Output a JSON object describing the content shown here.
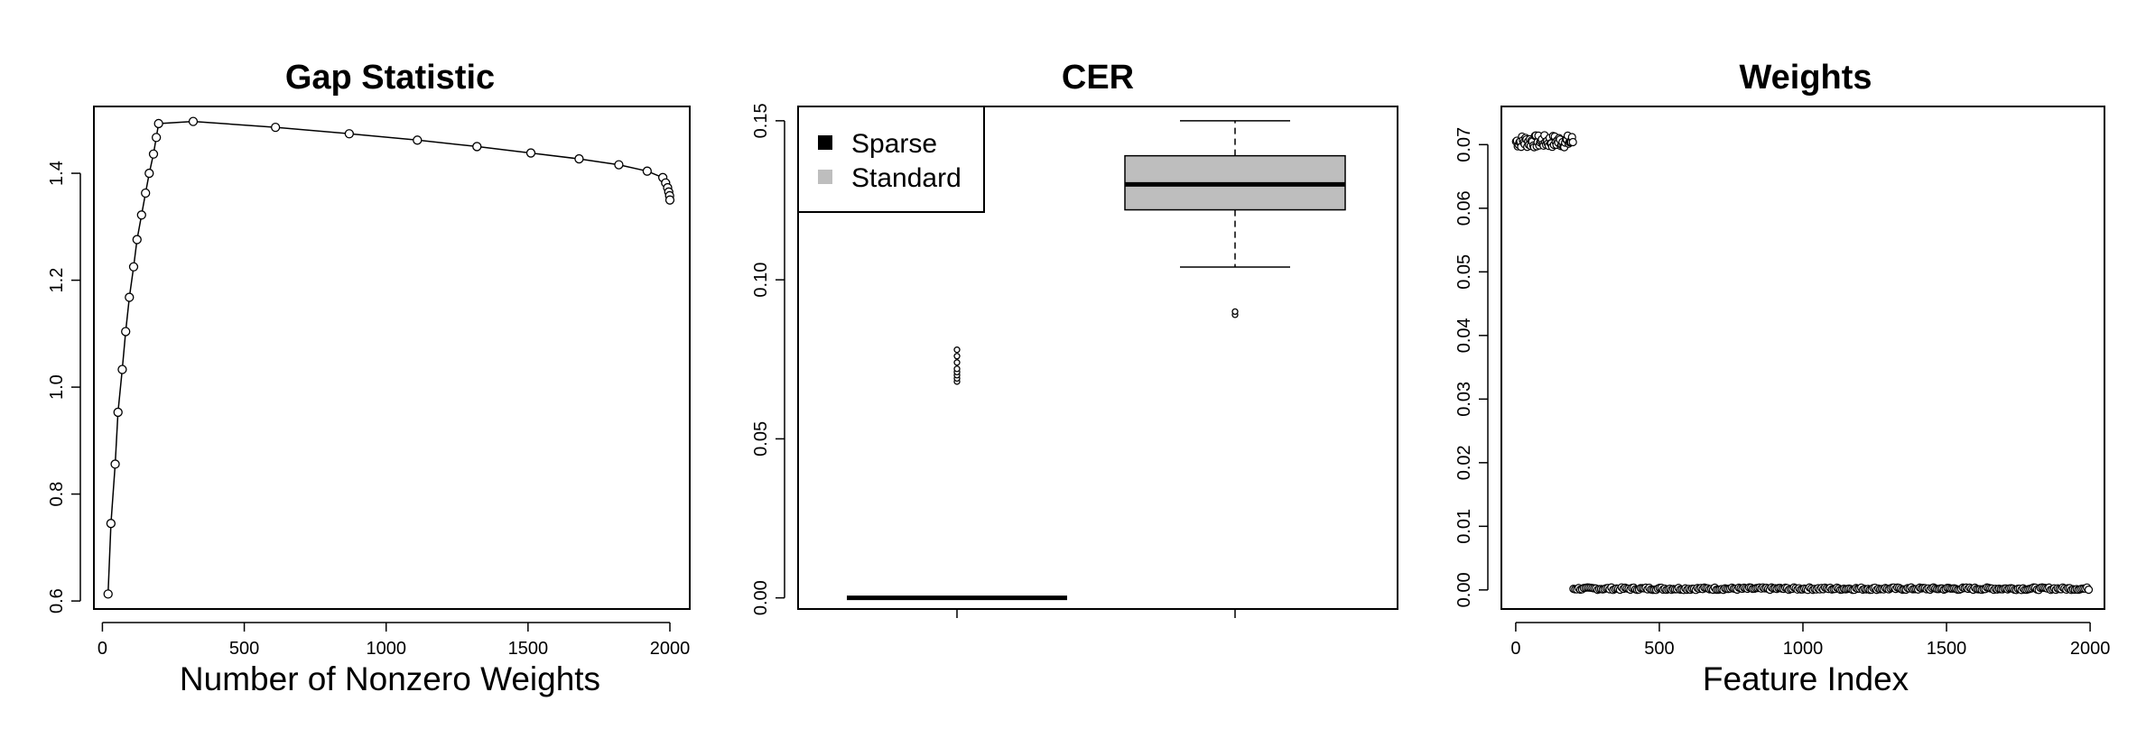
{
  "chart_data": [
    {
      "type": "line",
      "title": "Gap Statistic",
      "xlabel": "Number of  Nonzero Weights",
      "ylabel": "",
      "xlim": [
        -30,
        2070
      ],
      "ylim": [
        0.585,
        1.525
      ],
      "xticks": [
        0,
        500,
        1000,
        1500,
        2000
      ],
      "yticks": [
        0.6,
        0.8,
        1.0,
        1.2,
        1.4
      ],
      "ytick_labels": [
        "0.6",
        "0.8",
        "1.0",
        "1.2",
        "1.4"
      ],
      "x": [
        20,
        30,
        45,
        55,
        70,
        82,
        95,
        110,
        122,
        138,
        152,
        165,
        180,
        190,
        198,
        320,
        610,
        870,
        1110,
        1320,
        1510,
        1680,
        1820,
        1920,
        1975,
        1985,
        1992,
        1996,
        1999,
        2000
      ],
      "y": [
        0.613,
        0.745,
        0.856,
        0.953,
        1.033,
        1.104,
        1.168,
        1.225,
        1.276,
        1.322,
        1.363,
        1.4,
        1.436,
        1.467,
        1.493,
        1.497,
        1.486,
        1.474,
        1.462,
        1.45,
        1.438,
        1.427,
        1.416,
        1.404,
        1.392,
        1.382,
        1.373,
        1.365,
        1.358,
        1.35
      ]
    },
    {
      "type": "box",
      "title": "CER",
      "xlabel": "",
      "ylabel": "",
      "ylim": [
        -0.0035,
        0.1545
      ],
      "yticks": [
        0.0,
        0.05,
        0.1,
        0.15
      ],
      "ytick_labels": [
        "0.00",
        "0.05",
        "0.10",
        "0.15"
      ],
      "legend": {
        "position": "top-left",
        "entries": [
          {
            "label": "Sparse",
            "color": "#000000"
          },
          {
            "label": "Standard",
            "color": "#bebebe"
          }
        ]
      },
      "boxes": [
        {
          "name": "Sparse",
          "fill": "#000000",
          "min": 0.0,
          "q1": 0.0,
          "median": 0.0,
          "q3": 0.0,
          "max": 0.0,
          "outliers": [
            0.068,
            0.069,
            0.07,
            0.071,
            0.072,
            0.074,
            0.076,
            0.078
          ]
        },
        {
          "name": "Standard",
          "fill": "#bebebe",
          "min": 0.104,
          "q1": 0.122,
          "median": 0.13,
          "q3": 0.139,
          "max": 0.15,
          "outliers": [
            0.089,
            0.09
          ]
        }
      ]
    },
    {
      "type": "scatter",
      "title": "Weights",
      "xlabel": "Feature Index",
      "ylabel": "",
      "xlim": [
        -50,
        2050
      ],
      "ylim": [
        -0.003,
        0.076
      ],
      "xticks": [
        0,
        500,
        1000,
        1500,
        2000
      ],
      "yticks": [
        0.0,
        0.01,
        0.02,
        0.03,
        0.04,
        0.05,
        0.06,
        0.07
      ],
      "ytick_labels": [
        "0.00",
        "0.01",
        "0.02",
        "0.03",
        "0.04",
        "0.05",
        "0.06",
        "0.07"
      ],
      "segments": [
        {
          "x_from": 1,
          "x_to": 200,
          "y_min": 0.0695,
          "y_max": 0.0715
        },
        {
          "x_from": 201,
          "x_to": 2000,
          "y_min": 0.0,
          "y_max": 0.0004
        }
      ]
    }
  ]
}
